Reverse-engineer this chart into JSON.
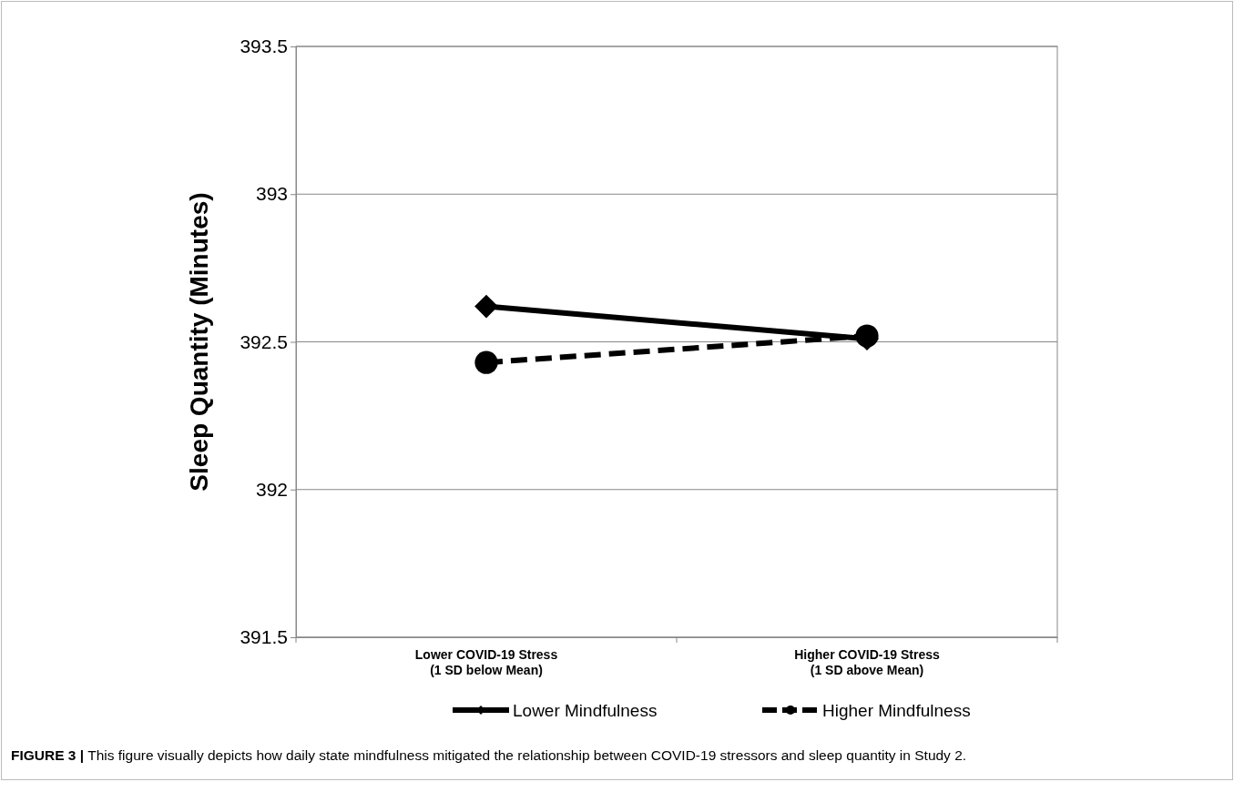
{
  "chart_data": {
    "type": "line",
    "ylabel": "Sleep Quantity (Minutes)",
    "categories": [
      "Lower COVID-19 Stress\n(1 SD below Mean)",
      "Higher COVID-19 Stress\n(1 SD above Mean)"
    ],
    "series": [
      {
        "name": "Lower Mindfulness",
        "color": "#000000",
        "values": [
          392.62,
          392.51
        ],
        "marker": "diamond",
        "line_style": "solid"
      },
      {
        "name": "Higher Mindfulness",
        "color": "#000000",
        "values": [
          392.43,
          392.52
        ],
        "marker": "circle",
        "line_style": "dashed"
      }
    ],
    "ylim": [
      391.5,
      393.5
    ],
    "yticks": [
      391.5,
      392,
      392.5,
      393,
      393.5
    ],
    "grid": "y",
    "legend": "bottom",
    "annotations": [
      "FIGURE 3 | This figure visually depicts how daily state mindfulness mitigated the relationship between COVID-19 stressors and sleep quantity in Study 2."
    ]
  }
}
